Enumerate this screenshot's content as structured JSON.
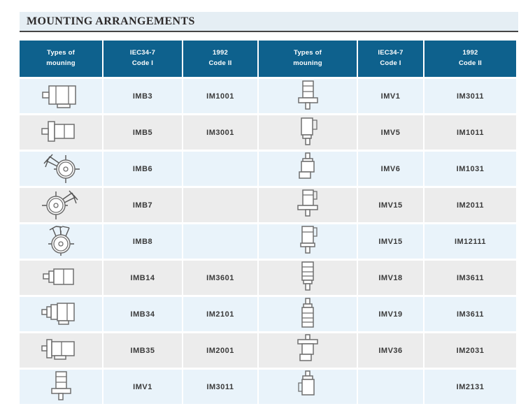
{
  "title": "MOUNTING ARRANGEMENTS",
  "colors": {
    "header_bg": "#0e618d",
    "header_text": "#ffffff",
    "title_band_bg": "#e5eef4",
    "title_underline": "#454545",
    "row_blue": "#e9f3fa",
    "row_gray": "#ececec",
    "code_text": "#3a3a3a",
    "icon_stroke": "#6e6e6e"
  },
  "table": {
    "headers": [
      {
        "line1": "Types of",
        "line2": "mouning"
      },
      {
        "line1": "IEC34-7",
        "line2": "Code I"
      },
      {
        "line1": "1992",
        "line2": "Code II"
      },
      {
        "line1": "Types of",
        "line2": "mouning"
      },
      {
        "line1": "IEC34-7",
        "line2": "Code I"
      },
      {
        "line1": "1992",
        "line2": "Code II"
      }
    ],
    "rows": [
      {
        "left_icon": "motor-b3-foot-icon",
        "left_code1": "IMB3",
        "left_code2": "IM1001",
        "right_icon": "motor-v1-vertical-flange-icon",
        "right_code1": "IMV1",
        "right_code2": "IM3011"
      },
      {
        "left_icon": "motor-b5-flange-icon",
        "left_code1": "IMB5",
        "left_code2": "IM3001",
        "right_icon": "motor-v5-vertical-foot-icon",
        "right_code1": "IMV5",
        "right_code2": "IM1011"
      },
      {
        "left_icon": "motor-b6-wall-end-view-icon",
        "left_code1": "IMB6",
        "left_code2": "",
        "right_icon": "motor-v6-vertical-foot-shaft-up-icon",
        "right_code1": "IMV6",
        "right_code2": "IM1031"
      },
      {
        "left_icon": "motor-b7-wall-end-view-icon",
        "left_code1": "IMB7",
        "left_code2": "",
        "right_icon": "motor-v15-vertical-foot-flange-icon",
        "right_code1": "IMV15",
        "right_code2": "IM2011"
      },
      {
        "left_icon": "motor-b8-ceiling-end-view-icon",
        "left_code1": "IMB8",
        "left_code2": "",
        "right_icon": "motor-v15-vertical-foot-face-icon",
        "right_code1": "IMV15",
        "right_code2": "IM12111"
      },
      {
        "left_icon": "motor-b14-face-icon",
        "left_code1": "IMB14",
        "left_code2": "IM3601",
        "right_icon": "motor-v18-vertical-face-icon",
        "right_code1": "IMV18",
        "right_code2": "IM3611"
      },
      {
        "left_icon": "motor-b34-foot-face-icon",
        "left_code1": "IMB34",
        "left_code2": "IM2101",
        "right_icon": "motor-v19-vertical-face-shaft-up-icon",
        "right_code1": "IMV19",
        "right_code2": "IM3611"
      },
      {
        "left_icon": "motor-b35-foot-flange-icon",
        "left_code1": "IMB35",
        "left_code2": "IM2001",
        "right_icon": "motor-v36-vertical-flange-top-icon",
        "right_code1": "IMV36",
        "right_code2": "IM2031"
      },
      {
        "left_icon": "motor-v1-vertical-flange-icon",
        "left_code1": "IMV1",
        "left_code2": "IM3011",
        "right_icon": "motor-vertical-foot-shaft-up-icon",
        "right_code1": "",
        "right_code2": "IM2131"
      }
    ]
  }
}
